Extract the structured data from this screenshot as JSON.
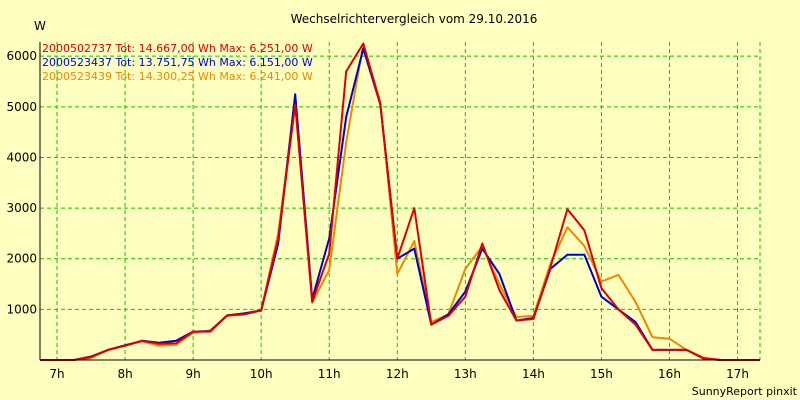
{
  "chart_data": {
    "type": "line",
    "title": "Wechselrichtervergleich vom 29.10.2016",
    "ylabel": "W",
    "xlabel": "",
    "footer": "SunnyReport pinxit",
    "x_tick_labels": [
      "7h",
      "8h",
      "9h",
      "10h",
      "11h",
      "12h",
      "13h",
      "14h",
      "15h",
      "16h",
      "17h"
    ],
    "x_tick_values": [
      7,
      8,
      9,
      10,
      11,
      12,
      13,
      14,
      15,
      16,
      17
    ],
    "y_tick_labels": [
      "1000",
      "2000",
      "3000",
      "4000",
      "5000",
      "6000"
    ],
    "y_tick_values": [
      1000,
      2000,
      3000,
      4000,
      5000,
      6000
    ],
    "xlim": [
      6.75,
      17.33
    ],
    "ylim": [
      0,
      6280
    ],
    "grid": true,
    "legend_position": "top-left",
    "x": [
      6.75,
      7,
      7.25,
      7.5,
      7.75,
      8,
      8.25,
      8.5,
      8.75,
      9,
      9.25,
      9.5,
      9.75,
      10,
      10.25,
      10.5,
      10.75,
      11,
      11.25,
      11.5,
      11.75,
      12,
      12.25,
      12.5,
      12.75,
      13,
      13.25,
      13.5,
      13.75,
      14,
      14.25,
      14.5,
      14.75,
      15,
      15.25,
      15.5,
      15.75,
      16,
      16.25,
      16.5,
      16.75,
      17,
      17.25,
      17.33
    ],
    "series": [
      {
        "name": "2000502737 Tot: 14.667,00 Wh Max: 6.251,00 W",
        "color": "#dd0000",
        "values": [
          0,
          0,
          0,
          60,
          200,
          280,
          380,
          320,
          330,
          560,
          560,
          880,
          900,
          980,
          2400,
          5050,
          1150,
          2100,
          5700,
          6250,
          5050,
          2000,
          3000,
          700,
          870,
          1250,
          2300,
          1380,
          780,
          810,
          1830,
          2980,
          2560,
          1420,
          1000,
          700,
          200,
          200,
          200,
          30,
          0,
          0,
          0,
          0
        ]
      },
      {
        "name": "2000523437 Tot: 13.751,75 Wh Max: 6.151,00 W",
        "color": "#0000cc",
        "values": [
          0,
          0,
          0,
          70,
          200,
          290,
          380,
          340,
          380,
          560,
          570,
          880,
          920,
          980,
          2300,
          5250,
          1200,
          2400,
          4800,
          6150,
          5050,
          2000,
          2200,
          700,
          900,
          1350,
          2200,
          1700,
          780,
          830,
          1800,
          2080,
          2080,
          1250,
          1000,
          750,
          200,
          200,
          200,
          30,
          0,
          0,
          0,
          0
        ]
      },
      {
        "name": "2000523439 Tot: 14.300,25 Wh Max: 6.241,00 W",
        "color": "#ee8800",
        "values": [
          0,
          0,
          0,
          40,
          200,
          290,
          370,
          280,
          300,
          540,
          580,
          870,
          900,
          980,
          2500,
          5100,
          1130,
          1780,
          4300,
          6240,
          5100,
          1700,
          2350,
          750,
          900,
          1800,
          2250,
          1500,
          850,
          870,
          1900,
          2620,
          2250,
          1550,
          1680,
          1150,
          450,
          420,
          200,
          50,
          0,
          0,
          0,
          0
        ]
      }
    ]
  }
}
